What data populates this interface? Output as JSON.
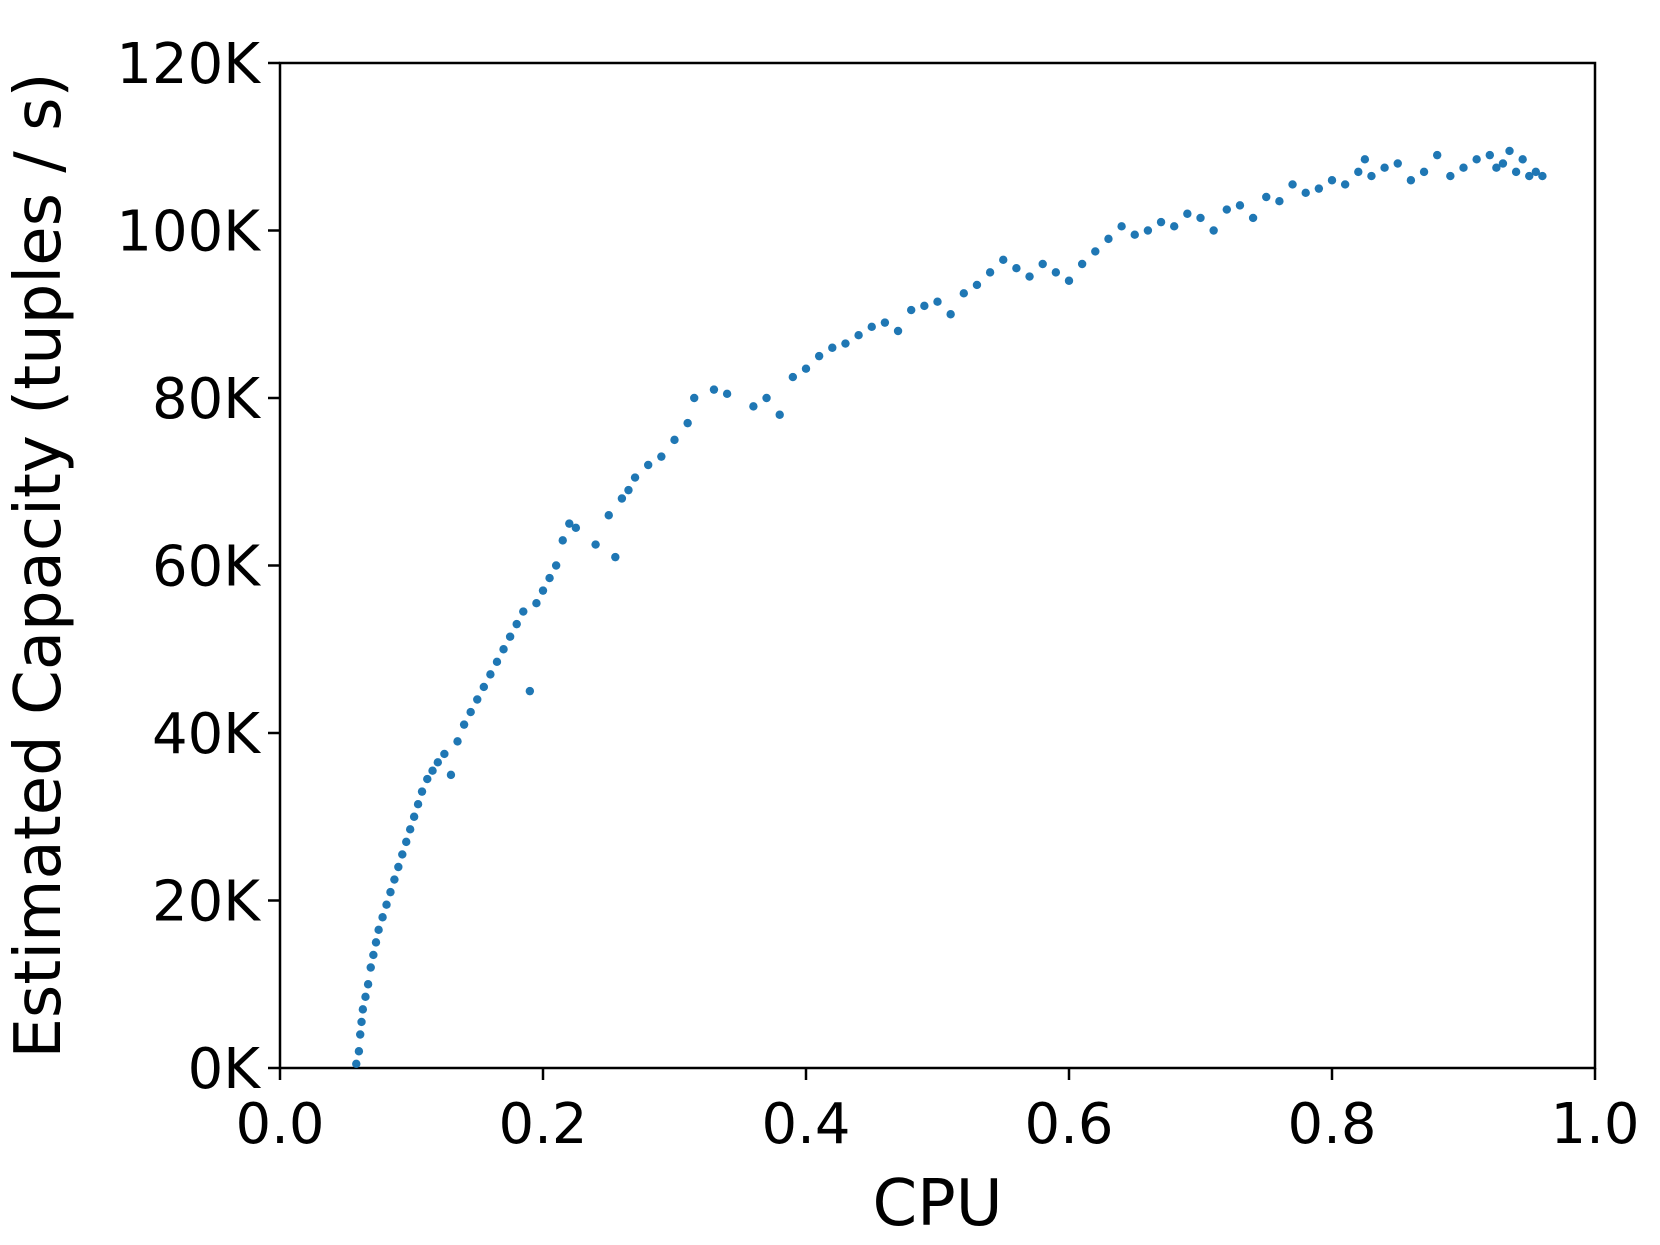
{
  "chart_data": {
    "type": "scatter",
    "title": "",
    "xlabel": "CPU",
    "ylabel": "Estimated Capacity (tuples / s)",
    "xlim": [
      0.0,
      1.0
    ],
    "ylim": [
      0,
      120000
    ],
    "xticks": [
      0.0,
      0.2,
      0.4,
      0.6,
      0.8,
      1.0
    ],
    "xtick_labels": [
      "0.0",
      "0.2",
      "0.4",
      "0.6",
      "0.8",
      "1.0"
    ],
    "yticks": [
      0,
      20000,
      40000,
      60000,
      80000,
      100000,
      120000
    ],
    "ytick_labels": [
      "0K",
      "20K",
      "40K",
      "60K",
      "80K",
      "100K",
      "120K"
    ],
    "grid": false,
    "legend": "none",
    "color": "#1f77b4",
    "series": [
      {
        "points": [
          [
            0.058,
            500
          ],
          [
            0.06,
            2000
          ],
          [
            0.061,
            4000
          ],
          [
            0.062,
            5500
          ],
          [
            0.063,
            7000
          ],
          [
            0.065,
            8500
          ],
          [
            0.067,
            10000
          ],
          [
            0.069,
            12000
          ],
          [
            0.071,
            13500
          ],
          [
            0.073,
            15000
          ],
          [
            0.075,
            16500
          ],
          [
            0.078,
            18000
          ],
          [
            0.081,
            19500
          ],
          [
            0.084,
            21000
          ],
          [
            0.087,
            22500
          ],
          [
            0.09,
            24000
          ],
          [
            0.093,
            25500
          ],
          [
            0.096,
            27000
          ],
          [
            0.099,
            28500
          ],
          [
            0.102,
            30000
          ],
          [
            0.105,
            31500
          ],
          [
            0.108,
            33000
          ],
          [
            0.112,
            34500
          ],
          [
            0.116,
            35500
          ],
          [
            0.12,
            36500
          ],
          [
            0.125,
            37500
          ],
          [
            0.13,
            35000
          ],
          [
            0.135,
            39000
          ],
          [
            0.14,
            41000
          ],
          [
            0.145,
            42500
          ],
          [
            0.15,
            44000
          ],
          [
            0.155,
            45500
          ],
          [
            0.16,
            47000
          ],
          [
            0.165,
            48500
          ],
          [
            0.17,
            50000
          ],
          [
            0.175,
            51500
          ],
          [
            0.18,
            53000
          ],
          [
            0.185,
            54500
          ],
          [
            0.19,
            45000
          ],
          [
            0.195,
            55500
          ],
          [
            0.2,
            57000
          ],
          [
            0.205,
            58500
          ],
          [
            0.21,
            60000
          ],
          [
            0.215,
            63000
          ],
          [
            0.22,
            65000
          ],
          [
            0.225,
            64500
          ],
          [
            0.24,
            62500
          ],
          [
            0.25,
            66000
          ],
          [
            0.255,
            61000
          ],
          [
            0.26,
            68000
          ],
          [
            0.265,
            69000
          ],
          [
            0.27,
            70500
          ],
          [
            0.28,
            72000
          ],
          [
            0.29,
            73000
          ],
          [
            0.3,
            75000
          ],
          [
            0.31,
            77000
          ],
          [
            0.315,
            80000
          ],
          [
            0.33,
            81000
          ],
          [
            0.34,
            80500
          ],
          [
            0.36,
            79000
          ],
          [
            0.37,
            80000
          ],
          [
            0.38,
            78000
          ],
          [
            0.39,
            82500
          ],
          [
            0.4,
            83500
          ],
          [
            0.41,
            85000
          ],
          [
            0.42,
            86000
          ],
          [
            0.43,
            86500
          ],
          [
            0.44,
            87500
          ],
          [
            0.45,
            88500
          ],
          [
            0.46,
            89000
          ],
          [
            0.47,
            88000
          ],
          [
            0.48,
            90500
          ],
          [
            0.49,
            91000
          ],
          [
            0.5,
            91500
          ],
          [
            0.51,
            90000
          ],
          [
            0.52,
            92500
          ],
          [
            0.53,
            93500
          ],
          [
            0.54,
            95000
          ],
          [
            0.55,
            96500
          ],
          [
            0.56,
            95500
          ],
          [
            0.57,
            94500
          ],
          [
            0.58,
            96000
          ],
          [
            0.59,
            95000
          ],
          [
            0.6,
            94000
          ],
          [
            0.61,
            96000
          ],
          [
            0.62,
            97500
          ],
          [
            0.63,
            99000
          ],
          [
            0.64,
            100500
          ],
          [
            0.65,
            99500
          ],
          [
            0.66,
            100000
          ],
          [
            0.67,
            101000
          ],
          [
            0.68,
            100500
          ],
          [
            0.69,
            102000
          ],
          [
            0.7,
            101500
          ],
          [
            0.71,
            100000
          ],
          [
            0.72,
            102500
          ],
          [
            0.73,
            103000
          ],
          [
            0.74,
            101500
          ],
          [
            0.75,
            104000
          ],
          [
            0.76,
            103500
          ],
          [
            0.77,
            105500
          ],
          [
            0.78,
            104500
          ],
          [
            0.79,
            105000
          ],
          [
            0.8,
            106000
          ],
          [
            0.81,
            105500
          ],
          [
            0.82,
            107000
          ],
          [
            0.825,
            108500
          ],
          [
            0.83,
            106500
          ],
          [
            0.84,
            107500
          ],
          [
            0.85,
            108000
          ],
          [
            0.86,
            106000
          ],
          [
            0.87,
            107000
          ],
          [
            0.88,
            109000
          ],
          [
            0.89,
            106500
          ],
          [
            0.9,
            107500
          ],
          [
            0.91,
            108500
          ],
          [
            0.92,
            109000
          ],
          [
            0.925,
            107500
          ],
          [
            0.93,
            108000
          ],
          [
            0.935,
            109500
          ],
          [
            0.94,
            107000
          ],
          [
            0.945,
            108500
          ],
          [
            0.95,
            106500
          ],
          [
            0.955,
            107000
          ],
          [
            0.96,
            106500
          ]
        ]
      }
    ]
  }
}
